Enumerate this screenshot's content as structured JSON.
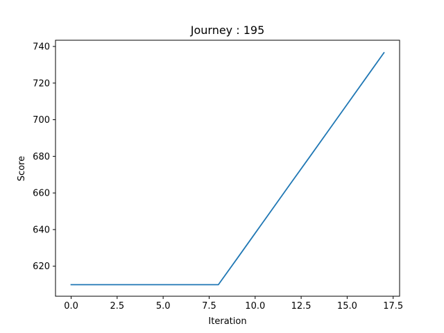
{
  "chart_data": {
    "type": "line",
    "title": "Journey : 195",
    "xlabel": "Iteration",
    "ylabel": "Score",
    "xlim": [
      -0.85,
      17.85
    ],
    "ylim": [
      603.6,
      743.4
    ],
    "x_ticks": [
      0.0,
      2.5,
      5.0,
      7.5,
      10.0,
      12.5,
      15.0,
      17.5
    ],
    "x_tick_labels": [
      "0.0",
      "2.5",
      "5.0",
      "7.5",
      "10.0",
      "12.5",
      "15.0",
      "17.5"
    ],
    "y_ticks": [
      620,
      640,
      660,
      680,
      700,
      720,
      740
    ],
    "y_tick_labels": [
      "620",
      "640",
      "660",
      "680",
      "700",
      "720",
      "740"
    ],
    "grid": false,
    "legend": false,
    "series": [
      {
        "color": "#1f77b4",
        "x": [
          0,
          1,
          2,
          3,
          4,
          5,
          6,
          7,
          8,
          9,
          10,
          11,
          12,
          13,
          14,
          15,
          16,
          17
        ],
        "y": [
          609.9,
          609.9,
          609.9,
          609.9,
          609.9,
          609.9,
          609.9,
          609.9,
          609.9,
          623.9,
          638.0,
          652.1,
          666.2,
          680.2,
          694.3,
          708.4,
          722.5,
          736.6
        ]
      }
    ]
  }
}
